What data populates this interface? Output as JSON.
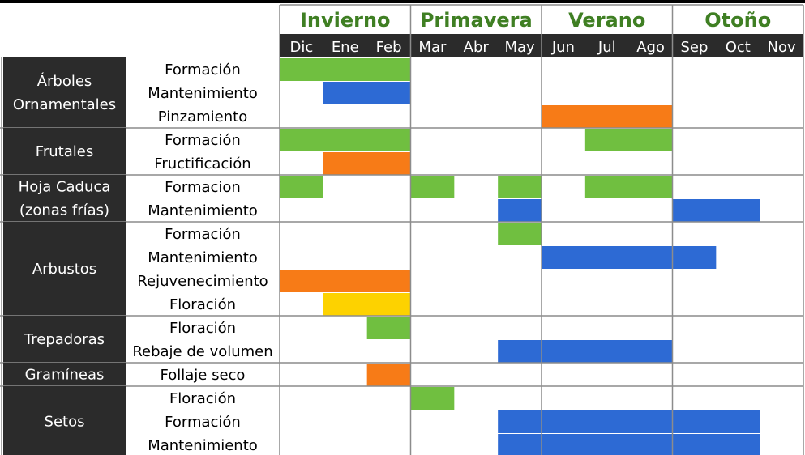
{
  "chart_data": {
    "type": "gantt",
    "seasons": [
      "Invierno",
      "Primavera",
      "Verano",
      "Otoño"
    ],
    "months": [
      "Dic",
      "Ene",
      "Feb",
      "Mar",
      "Abr",
      "May",
      "Jun",
      "Jul",
      "Ago",
      "Sep",
      "Oct",
      "Nov"
    ],
    "colors": {
      "green": "#70bf40",
      "blue": "#2d6ad4",
      "orange": "#f77b17",
      "yellow": "#fdd200",
      "header_bg": "#2b2b2b",
      "season_text": "#3f7f23",
      "grid": "#8c8c8c"
    },
    "groups": [
      {
        "name": [
          "Árboles",
          "Ornamentales"
        ],
        "tasks": [
          {
            "label": "Formación",
            "bars": [
              {
                "start": 0,
                "end": 3,
                "color": "green"
              }
            ]
          },
          {
            "label": "Mantenimiento",
            "bars": [
              {
                "start": 1,
                "end": 3,
                "color": "blue"
              }
            ]
          },
          {
            "label": "Pinzamiento",
            "bars": [
              {
                "start": 6,
                "end": 9,
                "color": "orange"
              }
            ]
          }
        ]
      },
      {
        "name": [
          "Frutales"
        ],
        "tasks": [
          {
            "label": "Formación",
            "bars": [
              {
                "start": 0,
                "end": 3,
                "color": "green"
              },
              {
                "start": 7,
                "end": 9,
                "color": "green"
              }
            ]
          },
          {
            "label": "Fructificación",
            "bars": [
              {
                "start": 1,
                "end": 3,
                "color": "orange"
              }
            ]
          }
        ]
      },
      {
        "name": [
          "Hoja Caduca",
          "(zonas frías)"
        ],
        "tasks": [
          {
            "label": "Formacion",
            "bars": [
              {
                "start": 0,
                "end": 1,
                "color": "green"
              },
              {
                "start": 3,
                "end": 4,
                "color": "green"
              },
              {
                "start": 5,
                "end": 6,
                "color": "green"
              },
              {
                "start": 7,
                "end": 9,
                "color": "green"
              }
            ]
          },
          {
            "label": "Mantenimiento",
            "bars": [
              {
                "start": 5,
                "end": 6,
                "color": "blue"
              },
              {
                "start": 9,
                "end": 11,
                "color": "blue"
              }
            ]
          }
        ]
      },
      {
        "name": [
          "Arbustos"
        ],
        "tasks": [
          {
            "label": "Formación",
            "bars": [
              {
                "start": 5,
                "end": 6,
                "color": "green"
              }
            ]
          },
          {
            "label": "Mantenimiento",
            "bars": [
              {
                "start": 6,
                "end": 10,
                "color": "blue"
              }
            ]
          },
          {
            "label": "Rejuvenecimiento",
            "bars": [
              {
                "start": 0,
                "end": 3,
                "color": "orange"
              }
            ]
          },
          {
            "label": "Floración",
            "bars": [
              {
                "start": 1,
                "end": 3,
                "color": "yellow"
              }
            ]
          }
        ]
      },
      {
        "name": [
          "Trepadoras"
        ],
        "tasks": [
          {
            "label": "Floración",
            "bars": [
              {
                "start": 2,
                "end": 3,
                "color": "green"
              }
            ]
          },
          {
            "label": "Rebaje de volumen",
            "bars": [
              {
                "start": 5,
                "end": 9,
                "color": "blue"
              }
            ]
          }
        ]
      },
      {
        "name": [
          "Gramíneas"
        ],
        "tasks": [
          {
            "label": "Follaje seco",
            "bars": [
              {
                "start": 2,
                "end": 3,
                "color": "orange"
              }
            ]
          }
        ]
      },
      {
        "name": [
          "Setos"
        ],
        "tasks": [
          {
            "label": "Floración",
            "bars": [
              {
                "start": 3,
                "end": 4,
                "color": "green"
              }
            ]
          },
          {
            "label": "Formación",
            "bars": [
              {
                "start": 5,
                "end": 11,
                "color": "blue"
              }
            ]
          },
          {
            "label": "Mantenimiento",
            "bars": [
              {
                "start": 5,
                "end": 11,
                "color": "blue"
              }
            ]
          }
        ]
      }
    ]
  }
}
